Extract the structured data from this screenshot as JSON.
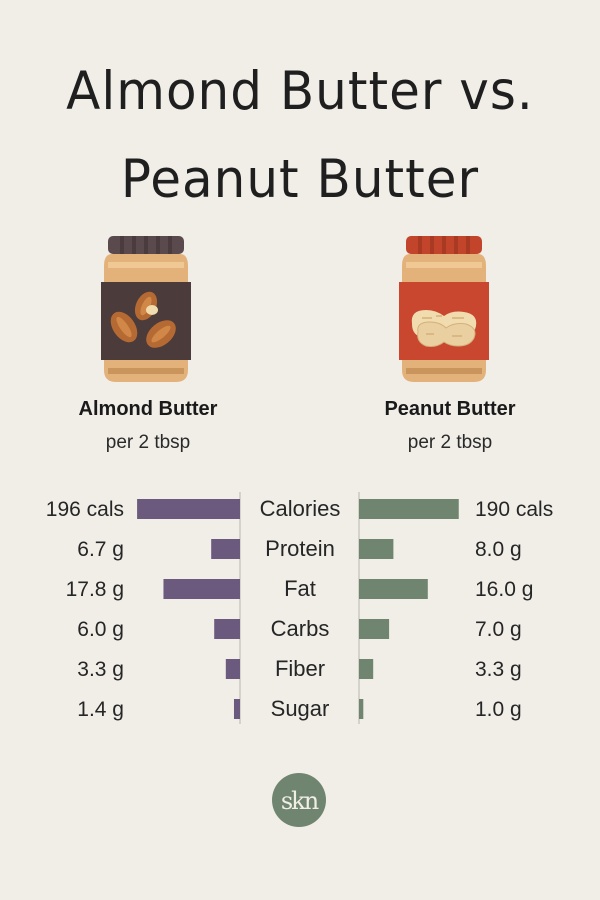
{
  "title_line1": "Almond Butter vs.",
  "title_line2": "Peanut Butter",
  "left_product": {
    "name": "Almond Butter",
    "serving": "per 2 tbsp"
  },
  "right_product": {
    "name": "Peanut Butter",
    "serving": "per 2 tbsp"
  },
  "logo_text": "skn",
  "colors": {
    "background": "#f1eee8",
    "almond": "#6b5a7e",
    "peanut": "#6f8570",
    "logo": "#6f8570"
  },
  "chart_data": {
    "type": "bar",
    "categories": [
      "Calories",
      "Protein",
      "Fat",
      "Carbs",
      "Fiber",
      "Sugar"
    ],
    "series": [
      {
        "name": "Almond Butter",
        "values": [
          196,
          6.7,
          17.8,
          6.0,
          3.3,
          1.4
        ],
        "labels": [
          "196 cals",
          "6.7 g",
          "17.8 g",
          "6.0 g",
          "3.3 g",
          "1.4 g"
        ]
      },
      {
        "name": "Peanut Butter",
        "values": [
          190,
          8.0,
          16.0,
          7.0,
          3.3,
          1.0
        ],
        "labels": [
          "190 cals",
          "8.0 g",
          "16.0 g",
          "7.0 g",
          "3.3 g",
          "1.0 g"
        ]
      }
    ]
  }
}
